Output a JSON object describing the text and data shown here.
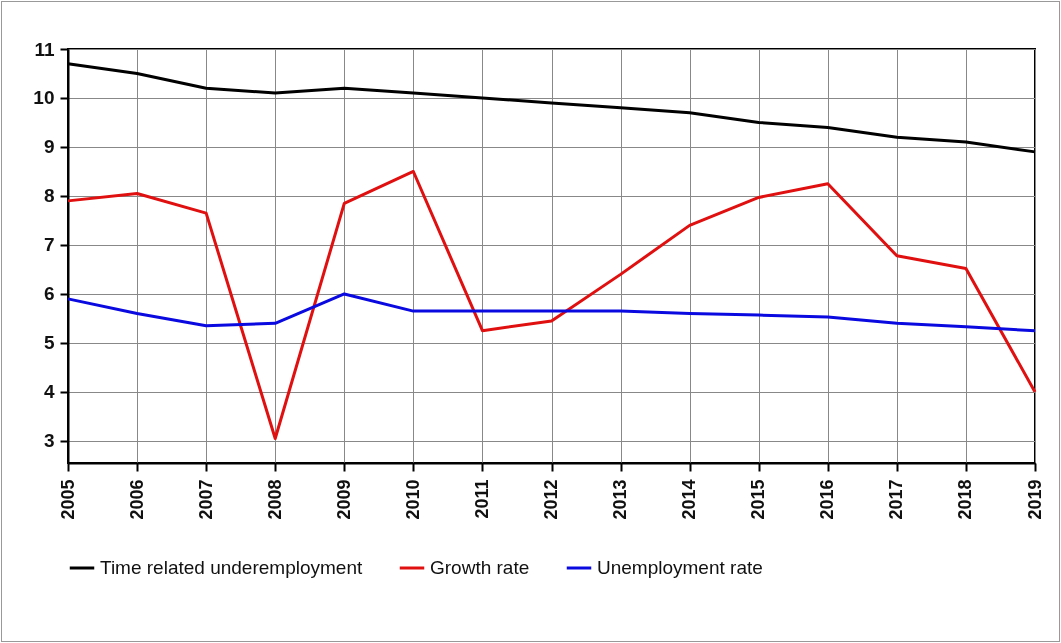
{
  "chart_data": {
    "type": "line",
    "categories": [
      "2005",
      "2006",
      "2007",
      "2008",
      "2009",
      "2010",
      "2011",
      "2012",
      "2013",
      "2014",
      "2015",
      "2016",
      "2017",
      "2018",
      "2019"
    ],
    "series": [
      {
        "name": "Time related underemployment",
        "color": "#000000",
        "values": [
          10.7,
          10.5,
          10.2,
          10.1,
          10.2,
          10.1,
          10.0,
          9.9,
          9.8,
          9.7,
          9.5,
          9.4,
          9.2,
          9.1,
          8.9
        ]
      },
      {
        "name": "Growth rate",
        "color": "#e01010",
        "values": [
          7.9,
          8.05,
          7.65,
          3.05,
          7.85,
          8.5,
          5.25,
          5.45,
          6.4,
          7.4,
          7.97,
          8.25,
          6.78,
          6.52,
          4.0
        ]
      },
      {
        "name": "Unemployment rate",
        "color": "#0a0ae0",
        "values": [
          5.9,
          5.6,
          5.35,
          5.4,
          6.0,
          5.65,
          5.65,
          5.65,
          5.65,
          5.6,
          5.57,
          5.53,
          5.4,
          5.33,
          5.25
        ]
      }
    ],
    "ylim": [
      2.55,
      11
    ],
    "yticks": [
      3,
      4,
      5,
      6,
      7,
      8,
      9,
      10,
      11
    ],
    "grid": true,
    "legend": "bottom",
    "line_style": "solid"
  }
}
